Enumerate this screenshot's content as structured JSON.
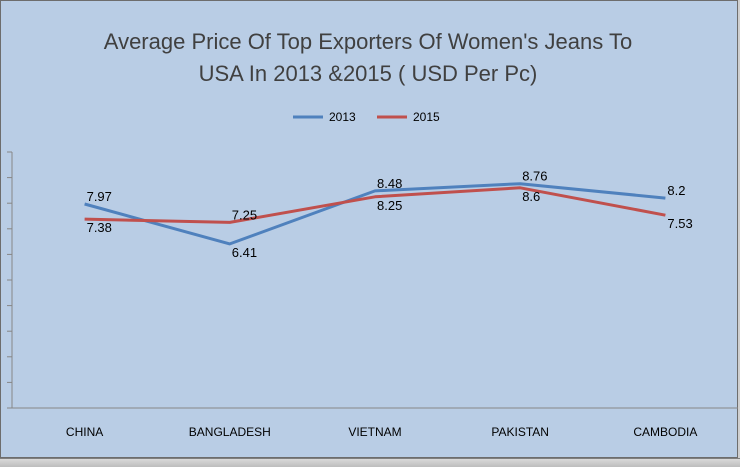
{
  "colors": {
    "background": "#b9cde5",
    "series_2013": "#4f81bd",
    "series_2015": "#c0504d",
    "axis": "#868686"
  },
  "chart_data": {
    "type": "line",
    "title_lines": [
      "Average Price Of Top Exporters  Of Women's Jeans To",
      "USA In 2013 &2015 ( USD Per Pc)"
    ],
    "categories": [
      "CHINA",
      "BANGLADESH",
      "VIETNAM",
      "PAKISTAN",
      "CAMBODIA"
    ],
    "series": [
      {
        "name": "2013",
        "color": "#4f81bd",
        "values": [
          7.97,
          6.41,
          8.48,
          8.76,
          8.2
        ]
      },
      {
        "name": "2015",
        "color": "#c0504d",
        "values": [
          7.38,
          7.25,
          8.25,
          8.6,
          7.53
        ]
      }
    ],
    "ylim": [
      0,
      10
    ],
    "legend_position": "top",
    "grid": false,
    "data_labels": true
  }
}
